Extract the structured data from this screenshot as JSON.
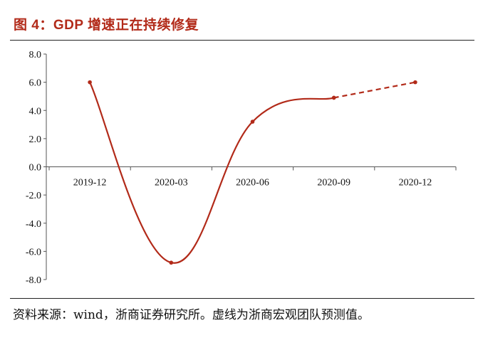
{
  "title": "图 4：GDP 增速正在持续修复",
  "source": "资料来源：wind，浙商证券研究所。虚线为浙商宏观团队预测值。",
  "colors": {
    "line": "#b22a19",
    "title": "#b22a19"
  },
  "chart_data": {
    "type": "line",
    "categories": [
      "2019-12",
      "2020-03",
      "2020-06",
      "2020-09",
      "2020-12"
    ],
    "y_ticks": [
      "8.0",
      "6.0",
      "4.0",
      "2.0",
      "0.0",
      "-2.0",
      "-4.0",
      "-6.0",
      "-8.0"
    ],
    "ylim": [
      -8,
      8
    ],
    "series": [
      {
        "values": [
          6.0,
          -6.8,
          3.2,
          4.9,
          null
        ],
        "style": "solid"
      },
      {
        "values": [
          null,
          null,
          null,
          4.9,
          6.0
        ],
        "style": "dashed"
      }
    ],
    "grid": false,
    "legend": "none"
  }
}
